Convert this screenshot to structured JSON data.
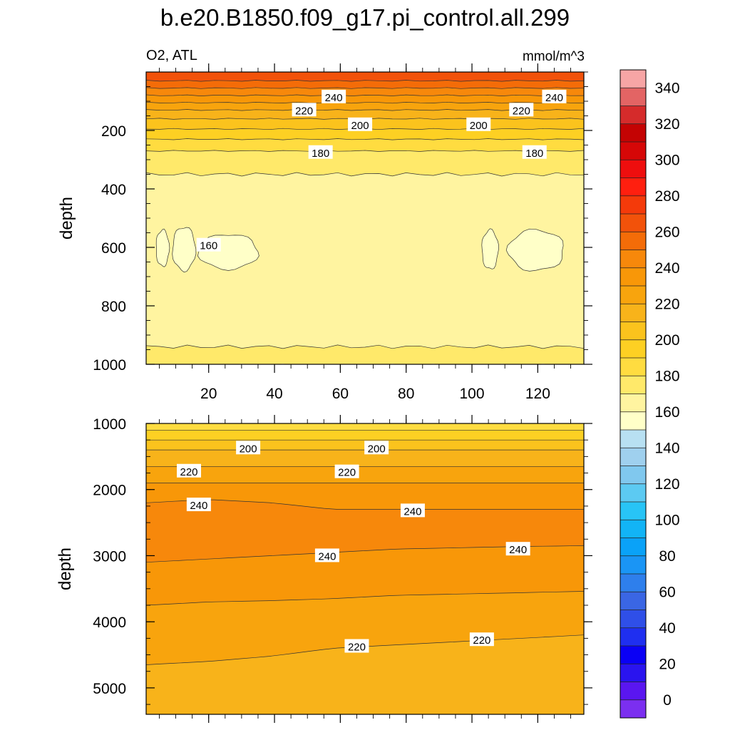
{
  "chart_data": {
    "type": "contour",
    "title": "b.e20.B1850.f09_g17.pi_control.all.299",
    "panels": [
      {
        "subtitle_left": "O2, ATL",
        "subtitle_right": "mmol/m^3",
        "ylabel": "depth",
        "xlabel": "",
        "xlim": [
          1,
          134
        ],
        "ylim": [
          1000,
          0
        ],
        "xticks": [
          20,
          40,
          60,
          80,
          100,
          120
        ],
        "yticks": [
          200,
          400,
          600,
          800,
          1000
        ],
        "bands": [
          {
            "bottom": 30,
            "value": 265
          },
          {
            "bottom": 55,
            "value": 255
          },
          {
            "bottom": 80,
            "value": 245
          },
          {
            "bottom": 105,
            "value": 235
          },
          {
            "bottom": 130,
            "value": 225
          },
          {
            "bottom": 160,
            "value": 215
          },
          {
            "bottom": 195,
            "value": 205
          },
          {
            "bottom": 230,
            "value": 195
          },
          {
            "bottom": 270,
            "value": 185
          },
          {
            "bottom": 350,
            "value": 175
          },
          {
            "bottom": 940,
            "value": 165
          },
          {
            "bottom": 1000,
            "value": 175
          }
        ],
        "pockets": [
          {
            "x": [
              4,
              8
            ],
            "y": [
              540,
              665
            ]
          },
          {
            "x": [
              9,
              16
            ],
            "y": [
              530,
              680
            ]
          },
          {
            "x": [
              17,
              35
            ],
            "y": [
              555,
              675
            ]
          },
          {
            "x": [
              103,
              108
            ],
            "y": [
              540,
              675
            ]
          },
          {
            "x": [
              111,
              128
            ],
            "y": [
              540,
              680
            ]
          }
        ],
        "contour_labels": [
          {
            "text": "240",
            "x": 58,
            "y": 85
          },
          {
            "text": "240",
            "x": 125,
            "y": 85
          },
          {
            "text": "220",
            "x": 49,
            "y": 130
          },
          {
            "text": "220",
            "x": 115,
            "y": 130
          },
          {
            "text": "200",
            "x": 66,
            "y": 180
          },
          {
            "text": "200",
            "x": 102,
            "y": 180
          },
          {
            "text": "180",
            "x": 54,
            "y": 275
          },
          {
            "text": "180",
            "x": 119,
            "y": 275
          },
          {
            "text": "160",
            "x": 20,
            "y": 592
          }
        ]
      },
      {
        "ylabel": "depth",
        "xlim": [
          1,
          134
        ],
        "ylim": [
          5400,
          1000
        ],
        "yticks": [
          1000,
          2000,
          3000,
          4000,
          5000
        ],
        "bands": [
          {
            "bottom": 1100,
            "value": 185
          },
          {
            "bottom": 1250,
            "value": 195
          },
          {
            "bottom": 1400,
            "value": 205
          },
          {
            "bottom": 1650,
            "value": 215
          },
          {
            "bottom": 1900,
            "value": 225
          },
          {
            "bottom": [
              2200,
              2150,
              2200,
              2300,
              2300,
              2300,
              2300,
              2300
            ],
            "value": 235
          },
          {
            "bottom": [
              3100,
              3050,
              3000,
              2950,
              2900,
              2880,
              2860,
              2850
            ],
            "value": 245
          },
          {
            "bottom": [
              3750,
              3700,
              3680,
              3650,
              3600,
              3580,
              3560,
              3540
            ],
            "value": 235
          },
          {
            "bottom": [
              4650,
              4600,
              4520,
              4400,
              4350,
              4300,
              4250,
              4200
            ],
            "value": 225
          },
          {
            "bottom": 5400,
            "value": 215
          }
        ],
        "contour_labels": [
          {
            "text": "200",
            "x": 32,
            "y": 1370
          },
          {
            "text": "200",
            "x": 71,
            "y": 1370
          },
          {
            "text": "220",
            "x": 14,
            "y": 1720
          },
          {
            "text": "220",
            "x": 62,
            "y": 1730
          },
          {
            "text": "240",
            "x": 17,
            "y": 2230
          },
          {
            "text": "240",
            "x": 82,
            "y": 2320
          },
          {
            "text": "240",
            "x": 56,
            "y": 3000
          },
          {
            "text": "240",
            "x": 114,
            "y": 2900
          },
          {
            "text": "220",
            "x": 65,
            "y": 4370
          },
          {
            "text": "220",
            "x": 103,
            "y": 4270
          }
        ]
      }
    ],
    "colorbar": {
      "tick_labels": [
        "0",
        "20",
        "40",
        "60",
        "80",
        "100",
        "120",
        "140",
        "160",
        "180",
        "200",
        "220",
        "240",
        "260",
        "280",
        "300",
        "320",
        "340"
      ],
      "colors": [
        "#7b2ff0",
        "#5a16f0",
        "#2a14ef",
        "#0a00f5",
        "#1f2ff0",
        "#2f4fe8",
        "#3a66e4",
        "#2e7fec",
        "#1a95f5",
        "#0aa2f8",
        "#12b4f6",
        "#28c4f6",
        "#5ccaf2",
        "#80c8ee",
        "#9fd0ee",
        "#b8e0f2",
        "#ffffc8",
        "#fff4a0",
        "#ffe96a",
        "#ffdc40",
        "#fdd023",
        "#fbc31d",
        "#f8b31a",
        "#f8a40d",
        "#f89708",
        "#f7880b",
        "#f46c08",
        "#f2520a",
        "#f43a0a",
        "#ff1f0f",
        "#ee0e0e",
        "#d60707",
        "#c40303",
        "#d52b2b",
        "#e36464",
        "#f7a5a5"
      ]
    }
  }
}
